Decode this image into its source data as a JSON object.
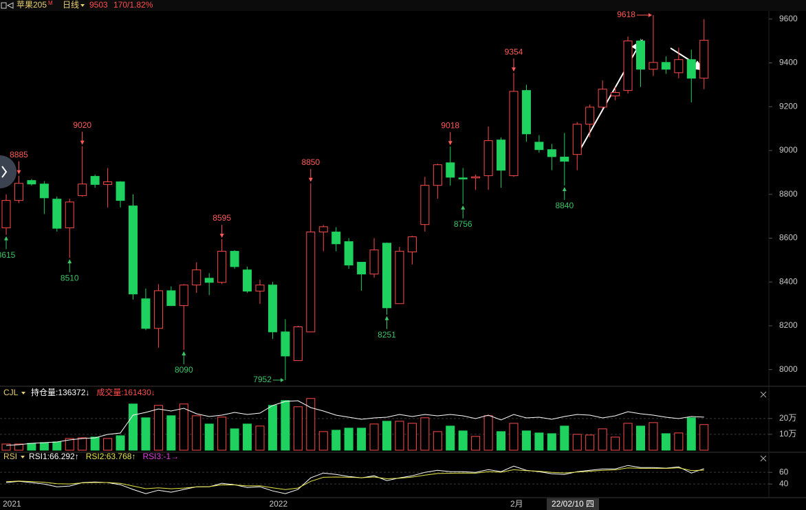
{
  "header": {
    "symbol": "苹果205",
    "symbol_mark": "M",
    "period": "日线",
    "price_change": "170/1.82%"
  },
  "chart_data": [
    {
      "type": "candlestick",
      "categories": [
        "2021",
        null,
        null,
        null,
        null,
        null,
        null,
        null,
        null,
        null,
        null,
        null,
        null,
        null,
        null,
        null,
        null,
        null,
        null,
        null,
        null,
        "2022",
        null,
        null,
        null,
        null,
        null,
        null,
        null,
        null,
        null,
        null,
        null,
        null,
        null,
        null,
        null,
        null,
        null,
        null,
        "2月",
        null,
        null,
        null,
        null,
        null,
        null,
        null,
        null,
        null,
        null,
        null,
        null,
        null,
        null,
        null
      ],
      "open": [
        8647,
        8772,
        8863,
        8847,
        8778,
        8647,
        8794,
        8882,
        8845,
        8857,
        8747,
        8323,
        8188,
        8360,
        8292,
        8386,
        8417,
        8398,
        8540,
        8455,
        8358,
        8386,
        8172,
        8041,
        8172,
        8628,
        8628,
        8584,
        8490,
        8436,
        8577,
        8301,
        8537,
        8662,
        8841,
        8944,
        8875,
        8875,
        8885,
        9048,
        8885,
        9274,
        9038,
        9004,
        8970,
        8982,
        9120,
        9198,
        9249,
        9274,
        9500,
        9371,
        9402,
        9355,
        9415,
        9330
      ],
      "high": [
        8800,
        8885,
        8870,
        8860,
        8790,
        8780,
        9020,
        8890,
        8920,
        8860,
        8800,
        8370,
        8390,
        8380,
        8390,
        8490,
        8440,
        8595,
        8545,
        8470,
        8410,
        8400,
        8230,
        8200,
        8850,
        8660,
        8650,
        8600,
        8490,
        8600,
        8580,
        8560,
        8610,
        8880,
        8940,
        9018,
        8920,
        8890,
        9110,
        9060,
        9354,
        9300,
        9070,
        9030,
        9080,
        9130,
        9210,
        9320,
        9290,
        9520,
        9510,
        9618,
        9430,
        9470,
        9460,
        9600
      ],
      "low": [
        8615,
        8760,
        8840,
        8710,
        8630,
        8510,
        8790,
        8830,
        8740,
        8740,
        8320,
        8180,
        8100,
        8290,
        8090,
        8350,
        8340,
        8390,
        8460,
        8350,
        8300,
        8140,
        7952,
        8040,
        8170,
        8540,
        8540,
        8460,
        8360,
        8420,
        8251,
        8300,
        8480,
        8630,
        8780,
        8840,
        8756,
        8820,
        8820,
        8830,
        8880,
        9040,
        8990,
        8910,
        8840,
        8910,
        9060,
        9190,
        9230,
        9260,
        9290,
        9340,
        9350,
        9330,
        9220,
        9280
      ],
      "close": [
        8772,
        8850,
        8847,
        8784,
        8645,
        8765,
        8847,
        8845,
        8857,
        8772,
        8345,
        8188,
        8360,
        8292,
        8386,
        8455,
        8398,
        8540,
        8470,
        8358,
        8386,
        8172,
        8062,
        8195,
        8628,
        8652,
        8574,
        8477,
        8436,
        8546,
        8282,
        8540,
        8606,
        8841,
        8935,
        8878,
        8870,
        8880,
        9045,
        8910,
        9270,
        9076,
        9004,
        8972,
        8951,
        9120,
        9198,
        9280,
        9265,
        9500,
        9371,
        9402,
        9371,
        9415,
        9330,
        9503
      ],
      "up_color": "#ff4b4b",
      "down_color": "#1fd15e",
      "high_marks": [
        1,
        6,
        17,
        24,
        35,
        40,
        51
      ],
      "low_marks": [
        0,
        5,
        14,
        22,
        30,
        36,
        44
      ],
      "ylim": [
        7930,
        9640
      ],
      "yticks": [
        8000,
        8200,
        8400,
        8600,
        8800,
        9000,
        9200,
        9400,
        9600
      ],
      "cursor_label": "22/02/10 四",
      "grid": false
    },
    {
      "type": "bar",
      "title": "CJL",
      "series": [
        {
          "name": "持仓量:",
          "type": "line",
          "axis": "y2",
          "color": "#ffffff",
          "marker": "↓",
          "values": [
            19800,
            22700,
            28300,
            31200,
            34000,
            42500,
            48200,
            51000,
            65200,
            70800,
            144500,
            155800,
            170000,
            161500,
            172800,
            150200,
            138800,
            144500,
            155800,
            147300,
            153000,
            184100,
            201100,
            204000,
            175600,
            161500,
            144500,
            136000,
            127500,
            133200,
            136000,
            147300,
            138800,
            147300,
            141700,
            147300,
            141700,
            130300,
            144500,
            124700,
            147300,
            133200,
            136000,
            127500,
            138800,
            147300,
            144500,
            133200,
            141700,
            158700,
            150200,
            144500,
            136000,
            130300,
            138800,
            136372
          ]
        },
        {
          "name": "成交量:",
          "type": "bar",
          "color": "#ff4b4b",
          "marker": "↓",
          "values": [
            39100,
            39100,
            43500,
            47800,
            52200,
            73900,
            78300,
            82600,
            73900,
            91300,
            291300,
            204400,
            282600,
            217400,
            291300,
            217400,
            165200,
            208700,
            134800,
            165200,
            152200,
            282600,
            313100,
            273900,
            326100,
            117400,
            126100,
            139100,
            139100,
            165200,
            182600,
            182600,
            169600,
            204400,
            117400,
            152200,
            121700,
            87000,
            217400,
            117400,
            169600,
            121700,
            108700,
            104300,
            152200,
            100000,
            95700,
            134800,
            82600,
            169600,
            152200,
            173900,
            104300,
            108700,
            204400,
            161430
          ]
        }
      ],
      "ylim": [
        0,
        390000
      ],
      "yticks": [
        {
          "value": 100000,
          "label": "10万"
        },
        {
          "value": 200000,
          "label": "20万"
        }
      ],
      "y2lim": [
        0,
        255000
      ],
      "grid": true
    },
    {
      "type": "line",
      "title": "RSI",
      "series": [
        {
          "name": "RSI1:",
          "color": "#ffffff",
          "marker": "↑",
          "values": [
            42.4,
            44.7,
            42.4,
            40.0,
            35.3,
            36.5,
            42.4,
            43.5,
            42.4,
            38.8,
            30.6,
            23.5,
            29.4,
            25.9,
            30.6,
            35.3,
            35.3,
            41.2,
            38.8,
            34.1,
            35.3,
            28.2,
            23.5,
            30.6,
            50.6,
            58.8,
            56.5,
            52.9,
            50.6,
            54.1,
            45.9,
            50.6,
            54.1,
            60.0,
            63.5,
            61.2,
            61.2,
            60.0,
            64.7,
            61.2,
            70.6,
            63.5,
            61.2,
            57.6,
            56.5,
            61.2,
            63.5,
            65.9,
            65.9,
            71.8,
            68.2,
            68.2,
            67.1,
            69.4,
            58.8,
            66.292
          ]
        },
        {
          "name": "RSI2:",
          "color": "#e8e84a",
          "marker": "↑",
          "values": [
            44.0,
            45.0,
            44.2,
            43.0,
            40.5,
            40.1,
            42.0,
            42.6,
            42.5,
            41.0,
            36.5,
            32.0,
            33.5,
            31.8,
            33.0,
            35.0,
            35.5,
            38.5,
            38.4,
            36.8,
            36.9,
            33.5,
            30.5,
            33.0,
            44.5,
            51.5,
            52.0,
            51.5,
            50.8,
            52.0,
            49.0,
            50.0,
            51.8,
            55.2,
            58.0,
            58.4,
            58.8,
            58.6,
            61.0,
            60.2,
            64.5,
            62.8,
            61.8,
            59.9,
            58.9,
            60.5,
            61.8,
            63.5,
            64.2,
            67.5,
            66.8,
            66.8,
            66.7,
            67.7,
            63.0,
            63.768
          ]
        },
        {
          "name": "RSI3:",
          "color": "#e040e0",
          "marker": "→",
          "current": -1,
          "values": []
        }
      ],
      "ylim": [
        19,
        92
      ],
      "yticks": [
        40,
        60
      ],
      "grid": true
    }
  ]
}
